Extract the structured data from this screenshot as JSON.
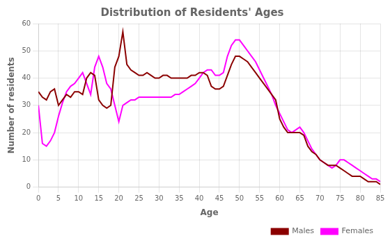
{
  "chart_data": {
    "type": "line",
    "title": "Distribution of Residents' Ages",
    "xlabel": "Age",
    "ylabel": "Number of residents",
    "x": [
      0,
      1,
      2,
      3,
      4,
      5,
      6,
      7,
      8,
      9,
      10,
      11,
      12,
      13,
      14,
      15,
      16,
      17,
      18,
      19,
      20,
      21,
      22,
      23,
      24,
      25,
      26,
      27,
      28,
      29,
      30,
      31,
      32,
      33,
      34,
      35,
      36,
      37,
      38,
      39,
      40,
      41,
      42,
      43,
      44,
      45,
      46,
      47,
      48,
      49,
      50,
      51,
      52,
      53,
      54,
      55,
      56,
      57,
      58,
      59,
      60,
      61,
      62,
      63,
      64,
      65,
      66,
      67,
      68,
      69,
      70,
      71,
      72,
      73,
      74,
      75,
      76,
      77,
      78,
      79,
      80,
      81,
      82,
      83,
      84,
      85
    ],
    "series": [
      {
        "name": "Males",
        "color": "#8B0000",
        "values": [
          35,
          33,
          32,
          35,
          36,
          30,
          32,
          34,
          33,
          35,
          35,
          34,
          40,
          42,
          41,
          32,
          30,
          29,
          30,
          44,
          48,
          57,
          45,
          43,
          42,
          41,
          41,
          42,
          41,
          40,
          40,
          41,
          41,
          40,
          40,
          40,
          40,
          40,
          41,
          41,
          42,
          42,
          41,
          37,
          36,
          36,
          37,
          41,
          45,
          48,
          48,
          47,
          46,
          44,
          42,
          40,
          38,
          36,
          34,
          32,
          25,
          22,
          20,
          20,
          20,
          20,
          19,
          15,
          13,
          12,
          10,
          9,
          8,
          8,
          8,
          7,
          6,
          5,
          4,
          4,
          4,
          3,
          2,
          2,
          2,
          1
        ]
      },
      {
        "name": "Females",
        "color": "#FF00FF",
        "values": [
          30,
          16,
          15,
          17,
          20,
          26,
          31,
          35,
          37,
          38,
          40,
          42,
          38,
          34,
          44,
          48,
          44,
          38,
          36,
          30,
          24,
          30,
          31,
          32,
          32,
          33,
          33,
          33,
          33,
          33,
          33,
          33,
          33,
          33,
          34,
          34,
          35,
          36,
          37,
          38,
          40,
          42,
          43,
          43,
          41,
          41,
          42,
          48,
          52,
          54,
          54,
          52,
          50,
          48,
          46,
          43,
          40,
          37,
          34,
          30,
          27,
          24,
          21,
          20,
          21,
          22,
          20,
          17,
          14,
          12,
          10,
          9,
          8,
          7,
          8,
          10,
          10,
          9,
          8,
          7,
          6,
          5,
          4,
          3,
          3,
          2
        ]
      }
    ],
    "xlim": [
      0,
      85
    ],
    "ylim": [
      0,
      60
    ],
    "xticks": [
      0,
      5,
      10,
      15,
      20,
      25,
      30,
      35,
      40,
      45,
      50,
      55,
      60,
      65,
      70,
      75,
      80,
      85
    ],
    "yticks": [
      0,
      10,
      20,
      30,
      40,
      50,
      60
    ],
    "grid": true,
    "legend": "lower right"
  }
}
